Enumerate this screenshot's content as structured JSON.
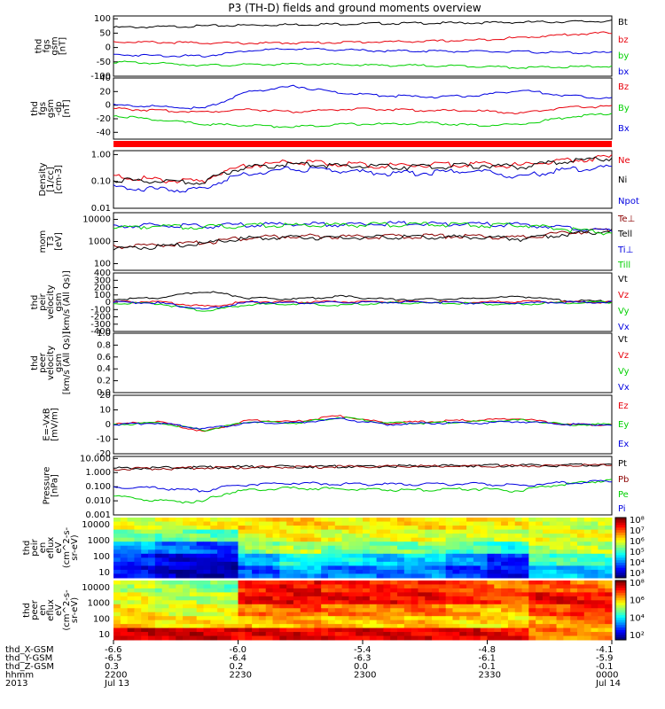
{
  "title": "P3 (TH-D) fields and ground moments overview",
  "colors": {
    "black": "#000000",
    "red": "#e8000b",
    "green": "#00d000",
    "blue": "#0000e0",
    "darkred": "#8b0000"
  },
  "chart_data": [
    {
      "id": "fgs_gsm",
      "type": "line",
      "ylabel": [
        "thd",
        "fgs",
        "gsm",
        "[nT]"
      ],
      "ylim": [
        -100,
        110
      ],
      "yticks": [
        "100",
        "50",
        "0",
        "-50",
        "-100"
      ],
      "ytick_values": [
        100,
        50,
        0,
        -50,
        -100
      ],
      "series": [
        {
          "name": "Bt",
          "color": "#000000",
          "values": [
            70,
            72,
            75,
            78,
            80,
            82,
            84,
            85,
            86,
            88,
            90,
            92
          ]
        },
        {
          "name": "bz",
          "color": "#e8000b",
          "values": [
            20,
            18,
            16,
            15,
            16,
            18,
            20,
            22,
            26,
            35,
            45,
            52
          ]
        },
        {
          "name": "by",
          "color": "#00d000",
          "values": [
            -50,
            -55,
            -62,
            -60,
            -58,
            -60,
            -62,
            -63,
            -65,
            -70,
            -68,
            -65
          ]
        },
        {
          "name": "bx",
          "color": "#0000e0",
          "values": [
            -25,
            -28,
            -30,
            -10,
            -5,
            -8,
            -12,
            -12,
            -14,
            -15,
            -18,
            -18
          ]
        }
      ]
    },
    {
      "id": "fgs_gsm_dp",
      "type": "line",
      "ylabel": [
        "thd",
        "fgs",
        "gsm",
        "-dp",
        "[nT]"
      ],
      "ylim": [
        -50,
        40
      ],
      "yticks": [
        "40",
        "20",
        "0",
        "-20",
        "-40"
      ],
      "ytick_values": [
        40,
        20,
        0,
        -20,
        -40
      ],
      "series": [
        {
          "name": "Bz",
          "color": "#e8000b",
          "values": [
            -5,
            -8,
            -10,
            -6,
            -10,
            -6,
            -6,
            -8,
            -8,
            -12,
            -3,
            -2
          ]
        },
        {
          "name": "By",
          "color": "#00d000",
          "values": [
            -15,
            -22,
            -28,
            -30,
            -32,
            -28,
            -28,
            -26,
            -30,
            -28,
            -18,
            -12
          ]
        },
        {
          "name": "Bx",
          "color": "#0000e0",
          "values": [
            0,
            -2,
            -5,
            20,
            28,
            18,
            14,
            12,
            14,
            22,
            14,
            10
          ]
        }
      ]
    },
    {
      "id": "density",
      "type": "line",
      "log": true,
      "ylabel": [
        "Density",
        "[1/cc]",
        "[cm-3]"
      ],
      "ylim": [
        0.01,
        1.4
      ],
      "yticks": [
        "1.00",
        "0.10",
        "0.01"
      ],
      "ytick_values": [
        1.0,
        0.1,
        0.01
      ],
      "series": [
        {
          "name": "Ne",
          "color": "#e8000b",
          "values": [
            0.15,
            0.12,
            0.1,
            0.4,
            0.55,
            0.45,
            0.4,
            0.42,
            0.45,
            0.4,
            0.6,
            0.8
          ]
        },
        {
          "name": "Ni",
          "color": "#000000",
          "values": [
            0.12,
            0.1,
            0.09,
            0.35,
            0.45,
            0.38,
            0.35,
            0.36,
            0.4,
            0.35,
            0.55,
            0.75
          ]
        },
        {
          "name": "Npot",
          "color": "#0000e0",
          "values": [
            0.06,
            0.05,
            0.05,
            0.2,
            0.3,
            0.25,
            0.2,
            0.22,
            0.25,
            0.15,
            0.28,
            0.35
          ]
        }
      ]
    },
    {
      "id": "temps",
      "type": "line",
      "log": true,
      "ylabel": [
        "mom",
        "T3",
        "[eV]"
      ],
      "ylim": [
        50,
        20000
      ],
      "yticks": [
        "10000",
        "1000",
        "100"
      ],
      "ytick_values": [
        10000,
        1000,
        100
      ],
      "series": [
        {
          "name": "Te⊥",
          "color": "#8b0000",
          "values": [
            600,
            700,
            900,
            1500,
            1800,
            1700,
            1700,
            1800,
            1800,
            1500,
            2500,
            3500
          ]
        },
        {
          "name": "Te||",
          "color": "#000000",
          "values": [
            500,
            600,
            800,
            1400,
            1600,
            1500,
            1600,
            1600,
            1600,
            1300,
            2200,
            3000
          ]
        },
        {
          "name": "Ti⊥",
          "color": "#0000e0",
          "values": [
            5000,
            5500,
            5000,
            6000,
            6000,
            6000,
            6500,
            6500,
            6000,
            6000,
            4000,
            3000
          ]
        },
        {
          "name": "Ti||",
          "color": "#00d000",
          "values": [
            4500,
            5000,
            4500,
            5500,
            5500,
            5500,
            6000,
            6000,
            5500,
            5500,
            3500,
            2500
          ]
        }
      ]
    },
    {
      "id": "peir_vel",
      "type": "line",
      "ylabel": [
        "thd",
        "peir",
        "velocity",
        "gsm",
        "[km/s (All Qs)]"
      ],
      "ylim": [
        -400,
        400
      ],
      "yticks": [
        "400",
        "300",
        "200",
        "100",
        "0",
        "-100",
        "-200",
        "-300",
        "-400"
      ],
      "ytick_values": [
        400,
        300,
        200,
        100,
        0,
        -100,
        -200,
        -300,
        -400
      ],
      "series": [
        {
          "name": "Vt",
          "color": "#000000",
          "values": [
            40,
            60,
            150,
            60,
            40,
            80,
            40,
            40,
            50,
            80,
            20,
            10
          ]
        },
        {
          "name": "Vz",
          "color": "#e8000b",
          "values": [
            0,
            10,
            -60,
            10,
            0,
            10,
            5,
            5,
            0,
            10,
            0,
            0
          ]
        },
        {
          "name": "Vy",
          "color": "#00d000",
          "values": [
            -10,
            -20,
            -120,
            -30,
            -20,
            -40,
            -10,
            -10,
            -20,
            -30,
            -5,
            0
          ]
        },
        {
          "name": "Vx",
          "color": "#0000e0",
          "values": [
            0,
            -10,
            -100,
            0,
            -10,
            0,
            0,
            0,
            -10,
            -10,
            0,
            0
          ]
        }
      ]
    },
    {
      "id": "peer_vel",
      "type": "line",
      "ylabel": [
        "thd",
        "peer",
        "velocity",
        "gsm",
        "[km/s (All Qs)]"
      ],
      "ylim": [
        0,
        1.0
      ],
      "yticks": [
        "1.0",
        "0.8",
        "0.6",
        "0.4",
        "0.2",
        "0.0"
      ],
      "ytick_values": [
        1.0,
        0.8,
        0.6,
        0.4,
        0.2,
        0.0
      ],
      "series": [
        {
          "name": "Vt",
          "color": "#000000",
          "values": []
        },
        {
          "name": "Vz",
          "color": "#e8000b",
          "values": []
        },
        {
          "name": "Vy",
          "color": "#00d000",
          "values": []
        },
        {
          "name": "Vx",
          "color": "#0000e0",
          "values": []
        }
      ]
    },
    {
      "id": "efield",
      "type": "line",
      "ylabel": [
        "E=-VxB",
        "[mV/m]"
      ],
      "ylim": [
        -20,
        20
      ],
      "yticks": [
        "20",
        "10",
        "0",
        "-10",
        "-20"
      ],
      "ytick_values": [
        20,
        10,
        0,
        -10,
        -20
      ],
      "series": [
        {
          "name": "Ez",
          "color": "#e8000b",
          "values": [
            0,
            2,
            -5,
            3,
            2,
            6,
            1,
            2,
            3,
            4,
            0,
            0
          ]
        },
        {
          "name": "Ey",
          "color": "#00d000",
          "values": [
            0,
            1,
            -4,
            2,
            1,
            5,
            1,
            1,
            2,
            3,
            0,
            0
          ]
        },
        {
          "name": "Ex",
          "color": "#0000e0",
          "values": [
            0,
            1,
            -3,
            1,
            1,
            4,
            0,
            1,
            1,
            2,
            0,
            0
          ]
        }
      ]
    },
    {
      "id": "pressure",
      "type": "line",
      "log": true,
      "ylabel": [
        "Pressure",
        "[nPa]"
      ],
      "ylim": [
        0.001,
        14
      ],
      "yticks": [
        "10.000",
        "1.000",
        "0.100",
        "0.010",
        "0.001"
      ],
      "ytick_values": [
        10,
        1,
        0.1,
        0.01,
        0.001
      ],
      "series": [
        {
          "name": "Pt",
          "color": "#000000",
          "values": [
            2.0,
            2.2,
            2.4,
            2.6,
            2.7,
            2.8,
            2.9,
            3.0,
            3.1,
            3.2,
            3.4,
            3.6
          ]
        },
        {
          "name": "Pb",
          "color": "#8b0000",
          "values": [
            1.8,
            2.0,
            2.2,
            2.4,
            2.5,
            2.6,
            2.7,
            2.8,
            2.9,
            3.0,
            3.2,
            3.4
          ]
        },
        {
          "name": "Pe",
          "color": "#00d000",
          "values": [
            0.02,
            0.01,
            0.008,
            0.06,
            0.08,
            0.07,
            0.06,
            0.06,
            0.07,
            0.05,
            0.15,
            0.3
          ]
        },
        {
          "name": "Pi",
          "color": "#0000e0",
          "values": [
            0.1,
            0.08,
            0.05,
            0.15,
            0.18,
            0.16,
            0.15,
            0.15,
            0.16,
            0.12,
            0.2,
            0.25
          ]
        }
      ]
    },
    {
      "id": "peir_spec",
      "type": "heatmap",
      "ylabel": [
        "thd",
        "peir",
        "en",
        "eflux",
        "eV",
        "(cm^2-s-",
        "sr-eV)"
      ],
      "yticks": [
        "10000",
        "1000",
        "100",
        "10"
      ],
      "colorbar": [
        "10⁸",
        "10⁷",
        "10⁶",
        "10⁵",
        "10⁴",
        "10³"
      ],
      "rows": [
        [
          6.0,
          6.0,
          6.1,
          6.3,
          6.3,
          6.2,
          6.2,
          6.3,
          6.2,
          6.2,
          6.0,
          5.8
        ],
        [
          5.5,
          5.4,
          5.3,
          6.0,
          6.2,
          6.0,
          6.0,
          6.0,
          5.9,
          5.8,
          6.0,
          6.0
        ],
        [
          4.5,
          4.2,
          4.0,
          5.5,
          5.8,
          5.5,
          5.4,
          5.5,
          5.2,
          5.0,
          5.8,
          5.8
        ],
        [
          3.8,
          3.5,
          3.4,
          4.5,
          5.0,
          4.8,
          4.6,
          4.7,
          4.3,
          3.8,
          5.2,
          5.2
        ],
        [
          3.6,
          3.3,
          3.2,
          4.0,
          4.5,
          4.2,
          4.2,
          4.3,
          3.9,
          3.6,
          4.6,
          4.6
        ]
      ]
    },
    {
      "id": "peer_spec",
      "type": "heatmap",
      "ylabel": [
        "thd",
        "peer",
        "en",
        "eflux",
        "eV",
        "(cm^2-s-",
        "sr-eV)"
      ],
      "yticks": [
        "10000",
        "1000",
        "100",
        "10"
      ],
      "colorbar": [
        "10⁸",
        "10⁶",
        "10⁴",
        "10²"
      ],
      "rows": [
        [
          5.8,
          5.6,
          5.4,
          7.2,
          7.4,
          7.2,
          7.2,
          7.2,
          7.0,
          6.8,
          7.0,
          6.8
        ],
        [
          6.0,
          5.8,
          5.8,
          7.4,
          7.5,
          7.4,
          7.4,
          7.4,
          7.2,
          7.0,
          7.4,
          7.4
        ],
        [
          6.2,
          6.0,
          6.0,
          6.8,
          7.0,
          6.8,
          6.8,
          6.9,
          6.6,
          6.4,
          7.0,
          7.2
        ],
        [
          6.4,
          6.2,
          6.2,
          6.4,
          6.5,
          6.4,
          6.4,
          6.4,
          6.3,
          6.2,
          6.6,
          6.8
        ],
        [
          7.6,
          7.6,
          7.6,
          7.5,
          7.5,
          7.5,
          7.5,
          7.5,
          7.5,
          7.4,
          6.8,
          6.6
        ]
      ]
    }
  ],
  "legends": [
    [
      "Bt",
      "bz",
      "by",
      "bx"
    ],
    [
      "Bz",
      "By",
      "Bx"
    ],
    [
      "Ne",
      "Ni",
      "Npot"
    ],
    [
      "Te⊥",
      "Tell",
      "Ti⊥",
      "Till"
    ],
    [
      "Vt",
      "Vz",
      "Vy",
      "Vx"
    ],
    [
      "Vt",
      "Vz",
      "Vy",
      "Vx"
    ],
    [
      "Ez",
      "Ey",
      "Ex"
    ],
    [
      "Pt",
      "Pb",
      "Pe",
      "Pi"
    ]
  ],
  "footer": {
    "labels": [
      "thd_X-GSM",
      "thd_Y-GSM",
      "thd_Z-GSM",
      "hhmm",
      "2013"
    ],
    "columns": [
      [
        "-6.6",
        "-6.5",
        "0.3",
        "2200",
        "Jul 13"
      ],
      [
        "-6.0",
        "-6.4",
        "0.2",
        "2230",
        ""
      ],
      [
        "-5.4",
        "-6.3",
        "0.0",
        "2300",
        ""
      ],
      [
        "-4.8",
        "-6.1",
        "-0.1",
        "2330",
        ""
      ],
      [
        "-4.1",
        "-5.9",
        "-0.1",
        "0000",
        "Jul 14"
      ]
    ]
  }
}
